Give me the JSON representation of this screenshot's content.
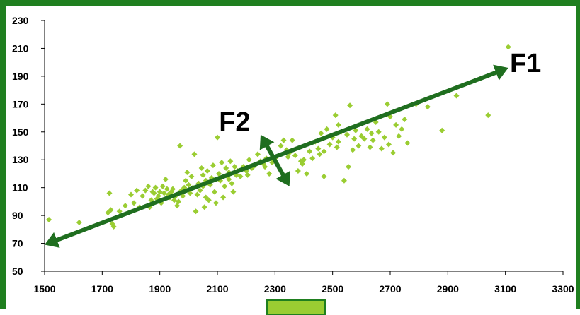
{
  "chart_data": {
    "type": "scatter",
    "title": "",
    "xlabel": "",
    "ylabel": "",
    "xlim": [
      1500,
      3300
    ],
    "ylim": [
      50,
      230
    ],
    "x_ticks": [
      "1500",
      "1700",
      "1900",
      "2100",
      "2300",
      "2500",
      "2700",
      "2900",
      "3100",
      "3300"
    ],
    "y_ticks": [
      "50",
      "70",
      "90",
      "110",
      "130",
      "150",
      "170",
      "190",
      "210",
      "230"
    ],
    "grid": false,
    "legend": "bottom-center",
    "marker": "diamond",
    "point_color": "#9acd32",
    "arrow_color": "#1f6e1f",
    "frame_color": "#1f7f1f",
    "annotations": [
      {
        "text": "F1",
        "x": 3170,
        "y": 200
      },
      {
        "text": "F2",
        "x": 2160,
        "y": 158
      }
    ],
    "arrows": [
      {
        "name": "F1",
        "from": [
          1500,
          69
        ],
        "to": [
          3110,
          196
        ]
      },
      {
        "name": "F2",
        "from": [
          2250,
          148
        ],
        "to": [
          2350,
          111
        ]
      }
    ],
    "series": [
      {
        "points": [
          [
            1515,
            87
          ],
          [
            1620,
            85
          ],
          [
            1720,
            92
          ],
          [
            1725,
            106
          ],
          [
            1730,
            94
          ],
          [
            1735,
            84
          ],
          [
            1740,
            82
          ],
          [
            1760,
            93
          ],
          [
            1780,
            97
          ],
          [
            1800,
            105
          ],
          [
            1810,
            99
          ],
          [
            1820,
            108
          ],
          [
            1830,
            96
          ],
          [
            1840,
            104
          ],
          [
            1850,
            108
          ],
          [
            1860,
            111
          ],
          [
            1865,
            96
          ],
          [
            1870,
            101
          ],
          [
            1880,
            106
          ],
          [
            1885,
            110
          ],
          [
            1890,
            102
          ],
          [
            1895,
            104
          ],
          [
            1900,
            107
          ],
          [
            1905,
            99
          ],
          [
            1910,
            111
          ],
          [
            1915,
            106
          ],
          [
            1920,
            116
          ],
          [
            1925,
            109
          ],
          [
            1930,
            105
          ],
          [
            1935,
            103
          ],
          [
            1940,
            107
          ],
          [
            1945,
            109
          ],
          [
            1950,
            101
          ],
          [
            1960,
            97
          ],
          [
            1965,
            100
          ],
          [
            1970,
            140
          ],
          [
            1975,
            108
          ],
          [
            1980,
            104
          ],
          [
            1985,
            110
          ],
          [
            1990,
            115
          ],
          [
            1995,
            121
          ],
          [
            2000,
            112
          ],
          [
            2005,
            106
          ],
          [
            2010,
            118
          ],
          [
            2015,
            110
          ],
          [
            2020,
            134
          ],
          [
            2025,
            93
          ],
          [
            2030,
            105
          ],
          [
            2035,
            113
          ],
          [
            2040,
            108
          ],
          [
            2045,
            124
          ],
          [
            2050,
            119
          ],
          [
            2055,
            96
          ],
          [
            2060,
            115
          ],
          [
            2065,
            122
          ],
          [
            2070,
            101
          ],
          [
            2075,
            112
          ],
          [
            2080,
            117
          ],
          [
            2085,
            126
          ],
          [
            2090,
            107
          ],
          [
            2100,
            146
          ],
          [
            2105,
            120
          ],
          [
            2110,
            115
          ],
          [
            2115,
            128
          ],
          [
            2120,
            103
          ],
          [
            2125,
            111
          ],
          [
            2130,
            124
          ],
          [
            2135,
            118
          ],
          [
            2140,
            121
          ],
          [
            2145,
            129
          ],
          [
            2150,
            113
          ],
          [
            2155,
            107
          ],
          [
            2160,
            125
          ],
          [
            2165,
            119
          ],
          [
            2170,
            122
          ],
          [
            2180,
            118
          ],
          [
            2190,
            125
          ],
          [
            2200,
            122
          ],
          [
            2210,
            130
          ],
          [
            2220,
            124
          ],
          [
            2230,
            126
          ],
          [
            2240,
            134
          ],
          [
            2250,
            129
          ],
          [
            2260,
            127
          ],
          [
            2270,
            131
          ],
          [
            2280,
            120
          ],
          [
            2290,
            128
          ],
          [
            2300,
            131
          ],
          [
            2310,
            126
          ],
          [
            2320,
            140
          ],
          [
            2330,
            144
          ],
          [
            2340,
            137
          ],
          [
            2350,
            135
          ],
          [
            2360,
            144
          ],
          [
            2370,
            133
          ],
          [
            2380,
            122
          ],
          [
            2390,
            129
          ],
          [
            2400,
            130
          ],
          [
            2410,
            120
          ],
          [
            2420,
            136
          ],
          [
            2430,
            131
          ],
          [
            2440,
            143
          ],
          [
            2450,
            138
          ],
          [
            2460,
            149
          ],
          [
            2470,
            136
          ],
          [
            2480,
            152
          ],
          [
            2490,
            141
          ],
          [
            2500,
            146
          ],
          [
            2510,
            162
          ],
          [
            2520,
            143
          ],
          [
            2530,
            150
          ],
          [
            2540,
            115
          ],
          [
            2550,
            148
          ],
          [
            2560,
            169
          ],
          [
            2570,
            137
          ],
          [
            2580,
            151
          ],
          [
            2590,
            140
          ],
          [
            2600,
            147
          ],
          [
            2610,
            145
          ],
          [
            2620,
            152
          ],
          [
            2630,
            139
          ],
          [
            2640,
            144
          ],
          [
            2650,
            157
          ],
          [
            2660,
            150
          ],
          [
            2670,
            138
          ],
          [
            2680,
            146
          ],
          [
            2690,
            170
          ],
          [
            2700,
            161
          ],
          [
            2710,
            135
          ],
          [
            2720,
            155
          ],
          [
            2730,
            147
          ],
          [
            2740,
            152
          ],
          [
            2750,
            159
          ],
          [
            2760,
            142
          ],
          [
            2790,
            170
          ],
          [
            2830,
            168
          ],
          [
            2880,
            151
          ],
          [
            2930,
            176
          ],
          [
            3040,
            162
          ],
          [
            3110,
            211
          ],
          [
            1990,
            108
          ],
          [
            2060,
            103
          ],
          [
            2140,
            116
          ],
          [
            2205,
            119
          ],
          [
            2265,
            125
          ],
          [
            2345,
            132
          ],
          [
            2395,
            127
          ],
          [
            2455,
            134
          ],
          [
            2515,
            139
          ],
          [
            2575,
            145
          ],
          [
            2635,
            149
          ],
          [
            2695,
            141
          ],
          [
            2470,
            118
          ],
          [
            2520,
            155
          ],
          [
            2555,
            125
          ],
          [
            2050,
            111
          ],
          [
            1955,
            104
          ],
          [
            1875,
            107
          ],
          [
            2095,
            99
          ],
          [
            2185,
            123
          ]
        ]
      }
    ]
  }
}
